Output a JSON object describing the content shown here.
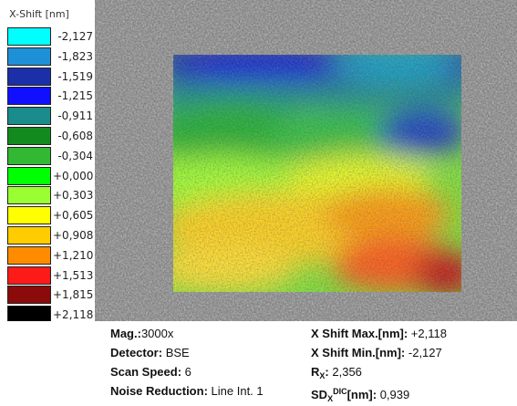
{
  "legend": {
    "title": "X-Shift [nm]",
    "items": [
      {
        "label": "-2,127",
        "color": "#00ffff"
      },
      {
        "label": "-1,823",
        "color": "#1e90d8"
      },
      {
        "label": "-1,519",
        "color": "#1a2fa8"
      },
      {
        "label": "-1,215",
        "color": "#1010ff"
      },
      {
        "label": "-0,911",
        "color": "#1a8c8c"
      },
      {
        "label": "-0,608",
        "color": "#138a1e"
      },
      {
        "label": "-0,304",
        "color": "#33b833"
      },
      {
        "label": "+0,000",
        "color": "#00ff00"
      },
      {
        "label": "+0,303",
        "color": "#99ff33"
      },
      {
        "label": "+0,605",
        "color": "#ffff00"
      },
      {
        "label": "+0,908",
        "color": "#ffcc00"
      },
      {
        "label": "+1,210",
        "color": "#ff8c00"
      },
      {
        "label": "+1,513",
        "color": "#ff1a1a"
      },
      {
        "label": "+1,815",
        "color": "#8b0a0a"
      },
      {
        "label": "+2,118",
        "color": "#000000"
      }
    ]
  },
  "info": {
    "mag_label": "Mag.:",
    "mag_value": "3000x",
    "detector_label": "Detector:",
    "detector_value": "BSE",
    "scan_label": "Scan Speed:",
    "scan_value": "6",
    "noise_label": "Noise Reduction:",
    "noise_value": "Line Int. 1",
    "xmax_label": "X Shift Max.[nm]:",
    "xmax_value": "+2,118",
    "xmin_label": "X Shift Min.[nm]:",
    "xmin_value": "-2,127",
    "rx_label_main": "R",
    "rx_label_sub": "X",
    "rx_label_end": ":",
    "rx_value": "2,356",
    "sd_label_main": "SD",
    "sd_label_sub": "X",
    "sd_label_sup": "DIC",
    "sd_label_end": "[nm]:",
    "sd_value": "0,939"
  }
}
